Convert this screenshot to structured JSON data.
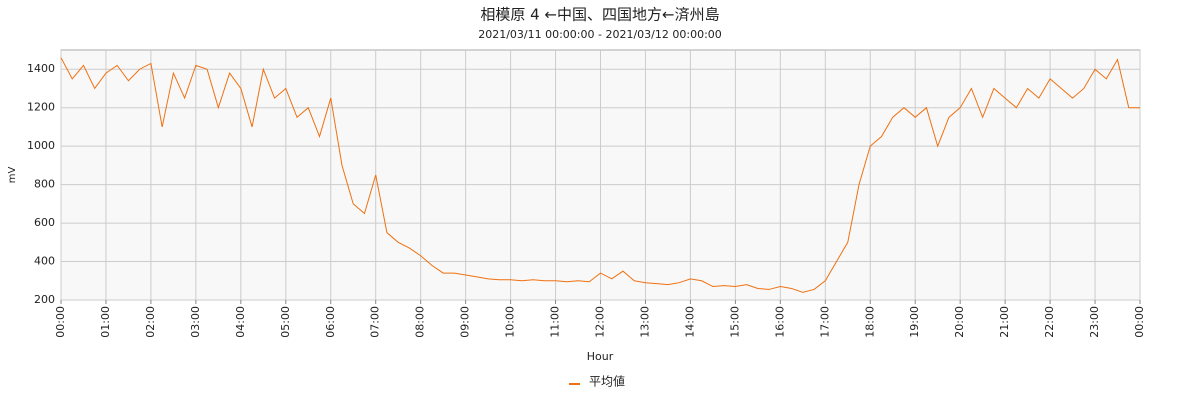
{
  "chart_data": {
    "type": "line",
    "title": "相模原 4 ←中国、四国地方←済州島",
    "subtitle": "2021/03/11 00:00:00 - 2021/03/12 00:00:00",
    "xlabel": "Hour",
    "ylabel": "mV",
    "x": [
      0,
      0.25,
      0.5,
      0.75,
      1,
      1.25,
      1.5,
      1.75,
      2,
      2.25,
      2.5,
      2.75,
      3,
      3.25,
      3.5,
      3.75,
      4,
      4.25,
      4.5,
      4.75,
      5,
      5.25,
      5.5,
      5.75,
      6,
      6.25,
      6.5,
      6.75,
      7,
      7.25,
      7.5,
      7.75,
      8,
      8.25,
      8.5,
      8.75,
      9,
      9.25,
      9.5,
      9.75,
      10,
      10.25,
      10.5,
      10.75,
      11,
      11.25,
      11.5,
      11.75,
      12,
      12.25,
      12.5,
      12.75,
      13,
      13.25,
      13.5,
      13.75,
      14,
      14.25,
      14.5,
      14.75,
      15,
      15.25,
      15.5,
      15.75,
      16,
      16.25,
      16.5,
      16.75,
      17,
      17.25,
      17.5,
      17.75,
      18,
      18.25,
      18.5,
      18.75,
      19,
      19.25,
      19.5,
      19.75,
      20,
      20.25,
      20.5,
      20.75,
      21,
      21.25,
      21.5,
      21.75,
      22,
      22.25,
      22.5,
      22.75,
      23,
      23.25,
      23.5,
      23.75,
      24
    ],
    "series": [
      {
        "name": "平均値",
        "color": "#f07010",
        "values": [
          1460,
          1350,
          1420,
          1300,
          1380,
          1420,
          1340,
          1400,
          1430,
          1100,
          1380,
          1250,
          1420,
          1400,
          1200,
          1380,
          1300,
          1100,
          1400,
          1250,
          1300,
          1150,
          1200,
          1050,
          1250,
          900,
          700,
          650,
          850,
          550,
          500,
          470,
          430,
          380,
          340,
          340,
          330,
          320,
          310,
          305,
          305,
          300,
          305,
          300,
          300,
          295,
          300,
          295,
          340,
          310,
          350,
          300,
          290,
          285,
          280,
          290,
          310,
          300,
          270,
          275,
          270,
          280,
          260,
          255,
          270,
          260,
          240,
          255,
          300,
          400,
          500,
          800,
          1000,
          1050,
          1150,
          1200,
          1150,
          1200,
          1000,
          1150,
          1200,
          1300,
          1150,
          1300,
          1250,
          1200,
          1300,
          1250,
          1350,
          1300,
          1250,
          1300,
          1400,
          1350,
          1450,
          1200,
          1200
        ]
      }
    ],
    "xlim": [
      0,
      24
    ],
    "xticks": [
      {
        "value": 0,
        "label": "00:00"
      },
      {
        "value": 1,
        "label": "01:00"
      },
      {
        "value": 2,
        "label": "02:00"
      },
      {
        "value": 3,
        "label": "03:00"
      },
      {
        "value": 4,
        "label": "04:00"
      },
      {
        "value": 5,
        "label": "05:00"
      },
      {
        "value": 6,
        "label": "06:00"
      },
      {
        "value": 7,
        "label": "07:00"
      },
      {
        "value": 8,
        "label": "08:00"
      },
      {
        "value": 9,
        "label": "09:00"
      },
      {
        "value": 10,
        "label": "10:00"
      },
      {
        "value": 11,
        "label": "11:00"
      },
      {
        "value": 12,
        "label": "12:00"
      },
      {
        "value": 13,
        "label": "13:00"
      },
      {
        "value": 14,
        "label": "14:00"
      },
      {
        "value": 15,
        "label": "15:00"
      },
      {
        "value": 16,
        "label": "16:00"
      },
      {
        "value": 17,
        "label": "17:00"
      },
      {
        "value": 18,
        "label": "18:00"
      },
      {
        "value": 19,
        "label": "19:00"
      },
      {
        "value": 20,
        "label": "20:00"
      },
      {
        "value": 21,
        "label": "21:00"
      },
      {
        "value": 22,
        "label": "22:00"
      },
      {
        "value": 23,
        "label": "23:00"
      },
      {
        "value": 24,
        "label": "00:00"
      }
    ],
    "ylim": [
      200,
      1500
    ],
    "yticks": [
      200,
      400,
      600,
      800,
      1000,
      1200,
      1400
    ],
    "grid": true
  }
}
